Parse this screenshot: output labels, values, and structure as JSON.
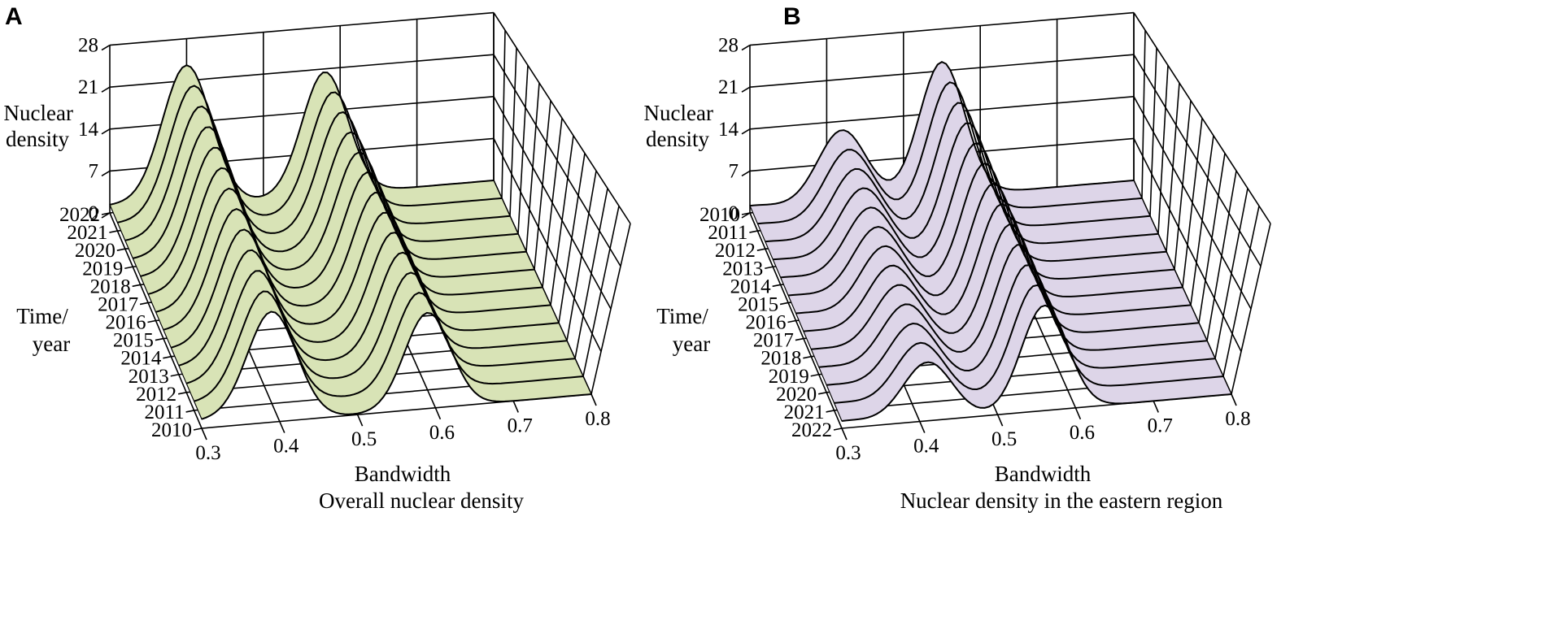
{
  "chart_data": [
    {
      "type": "surface",
      "panel": "A",
      "title": "Overall nuclear density",
      "xlabel": "Bandwidth",
      "ylabel": "Time/ year",
      "zlabel": "Nuclear density",
      "x_ticks": [
        "0.3",
        "0.4",
        "0.5",
        "0.6",
        "0.7",
        "0.8"
      ],
      "z_ticks": [
        "0",
        "7",
        "14",
        "21",
        "28"
      ],
      "years": [
        "2022",
        "2021",
        "2020",
        "2019",
        "2018",
        "2017",
        "2016",
        "2015",
        "2014",
        "2013",
        "2012",
        "2011",
        "2010"
      ],
      "xlim": [
        0.3,
        0.8
      ],
      "zlim": [
        0,
        28
      ],
      "peaks": [
        {
          "x": 0.4,
          "z": 23.5
        },
        {
          "x": 0.58,
          "z": 20.5
        }
      ],
      "surface_color": "#d8e3b6"
    },
    {
      "type": "surface",
      "panel": "B",
      "title": "Nuclear density in the eastern region",
      "xlabel": "Bandwidth",
      "ylabel": "Time/ year",
      "zlabel": "Nuclear density",
      "x_ticks": [
        "0.3",
        "0.4",
        "0.5",
        "0.6",
        "0.7",
        "0.8"
      ],
      "z_ticks": [
        "0",
        "7",
        "14",
        "21",
        "28"
      ],
      "years": [
        "2010",
        "2011",
        "2012",
        "2013",
        "2014",
        "2015",
        "2016",
        "2017",
        "2018",
        "2019",
        "2020",
        "2021",
        "2022"
      ],
      "xlim": [
        0.3,
        0.8
      ],
      "zlim": [
        0,
        28
      ],
      "peaks": [
        {
          "x": 0.42,
          "z": 12.5
        },
        {
          "x": 0.55,
          "z": 22.5
        }
      ],
      "surface_color": "#ddd5e8"
    }
  ]
}
